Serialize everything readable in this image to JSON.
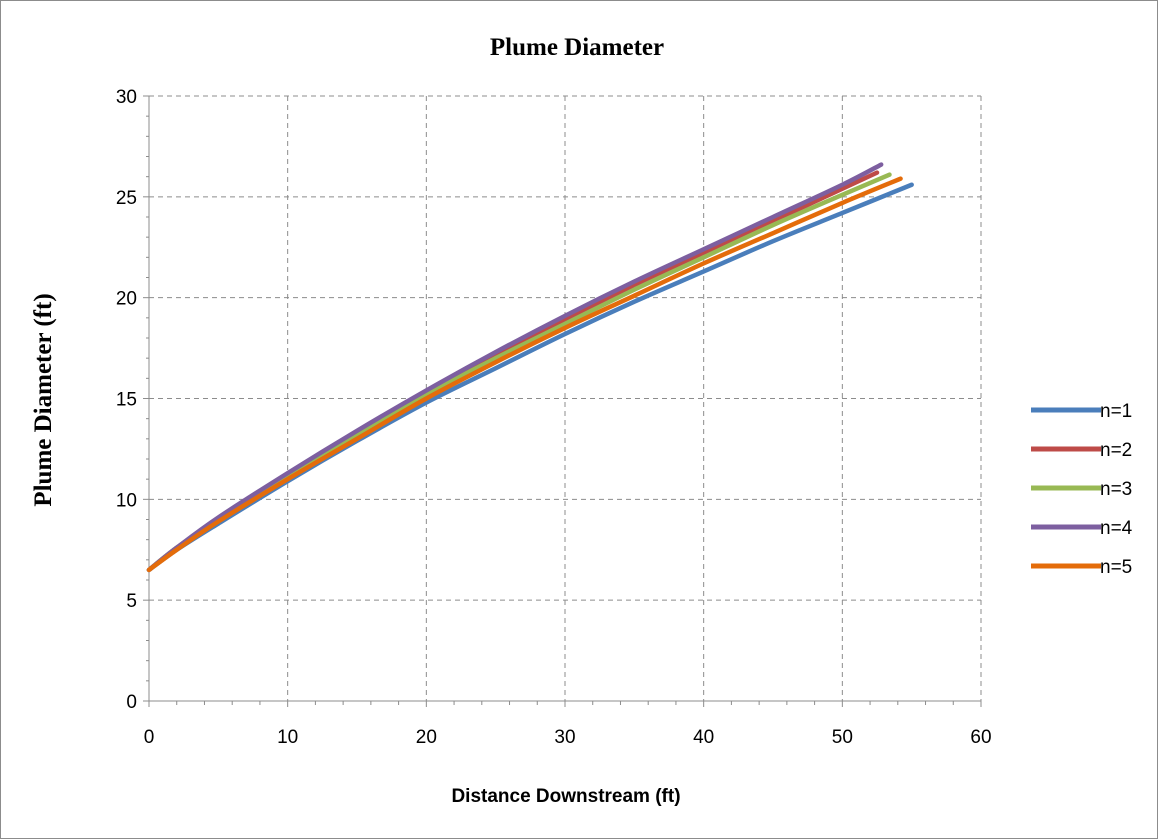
{
  "chart_data": {
    "type": "line",
    "title": "Plume Diameter",
    "xlabel": "Distance Downstream (ft)",
    "ylabel": "Plume Diameter (ft)",
    "xlim": [
      0,
      60
    ],
    "ylim": [
      0,
      30
    ],
    "xticks": [
      0,
      10,
      20,
      30,
      40,
      50,
      60
    ],
    "yticks": [
      0,
      5,
      10,
      15,
      20,
      25,
      30
    ],
    "grid": true,
    "legend_position": "right",
    "series": [
      {
        "name": "n=1",
        "color": "#4a7ebb",
        "x": [
          0,
          2,
          5,
          10,
          15,
          20,
          25,
          30,
          35,
          40,
          45,
          50,
          55
        ],
        "y": [
          6.5,
          7.5,
          8.8,
          10.9,
          12.9,
          14.8,
          16.5,
          18.2,
          19.8,
          21.3,
          22.8,
          24.2,
          25.6
        ]
      },
      {
        "name": "n=2",
        "color": "#be4b48",
        "x": [
          0,
          2,
          5,
          10,
          15,
          20,
          25,
          30,
          35,
          40,
          45,
          50,
          52.5
        ],
        "y": [
          6.5,
          7.6,
          9.0,
          11.2,
          13.3,
          15.3,
          17.1,
          18.9,
          20.6,
          22.2,
          23.8,
          25.4,
          26.2
        ]
      },
      {
        "name": "n=3",
        "color": "#98b954",
        "x": [
          0,
          2,
          5,
          10,
          15,
          20,
          25,
          30,
          35,
          40,
          45,
          50,
          53.4
        ],
        "y": [
          6.5,
          7.6,
          9.0,
          11.2,
          13.2,
          15.2,
          17.0,
          18.7,
          20.4,
          22.0,
          23.6,
          25.1,
          26.1
        ]
      },
      {
        "name": "n=4",
        "color": "#7d5fa0",
        "x": [
          0,
          2,
          5,
          10,
          15,
          20,
          25,
          30,
          35,
          40,
          45,
          50,
          52.8
        ],
        "y": [
          6.5,
          7.6,
          9.1,
          11.3,
          13.4,
          15.4,
          17.3,
          19.1,
          20.8,
          22.4,
          24.0,
          25.6,
          26.6
        ]
      },
      {
        "name": "n=5",
        "color": "#e46c0a",
        "x": [
          0,
          2,
          5,
          10,
          15,
          20,
          25,
          30,
          35,
          40,
          45,
          50,
          54.2
        ],
        "y": [
          6.5,
          7.5,
          8.9,
          11.0,
          13.0,
          15.0,
          16.8,
          18.5,
          20.1,
          21.7,
          23.2,
          24.7,
          25.9
        ]
      }
    ]
  }
}
